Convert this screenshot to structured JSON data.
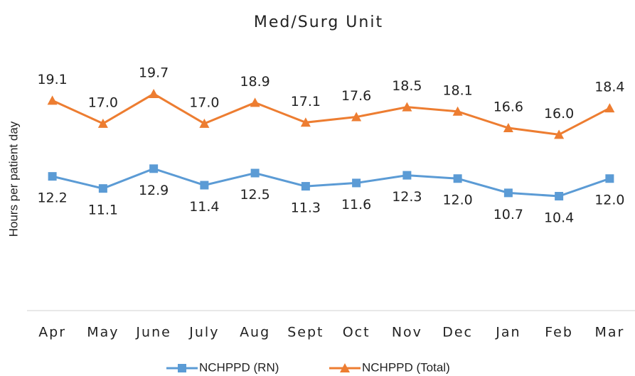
{
  "chart_data": {
    "type": "line",
    "title": "Med/Surg Unit",
    "y_label": "Hours per patient day",
    "categories": [
      "Apr",
      "May",
      "June",
      "July",
      "Aug",
      "Sept",
      "Oct",
      "Nov",
      "Dec",
      "Jan",
      "Feb",
      "Mar"
    ],
    "series": [
      {
        "name": "NCHPPD (RN)",
        "color": "#5b9bd5",
        "marker": "square",
        "values": [
          12.2,
          11.1,
          12.9,
          11.4,
          12.5,
          11.3,
          11.6,
          12.3,
          12.0,
          10.7,
          10.4,
          12.0
        ],
        "value_labels": [
          "12.2",
          "11.1",
          "12.9",
          "11.4",
          "12.5",
          "11.3",
          "11.6",
          "12.3",
          "12.0",
          "10.7",
          "10.4",
          "12.0"
        ]
      },
      {
        "name": "NCHPPD (Total)",
        "color": "#ed7d31",
        "marker": "triangle",
        "values": [
          19.1,
          17.0,
          19.7,
          17.0,
          18.9,
          17.1,
          17.6,
          18.5,
          18.1,
          16.6,
          16.0,
          18.4
        ],
        "value_labels": [
          "19.1",
          "17.0",
          "19.7",
          "17.0",
          "18.9",
          "17.1",
          "17.6",
          "18.5",
          "18.1",
          "16.6",
          "16.0",
          "18.4"
        ]
      }
    ],
    "ylim": [
      0,
      25
    ],
    "grid": false,
    "legend": "bottom"
  }
}
